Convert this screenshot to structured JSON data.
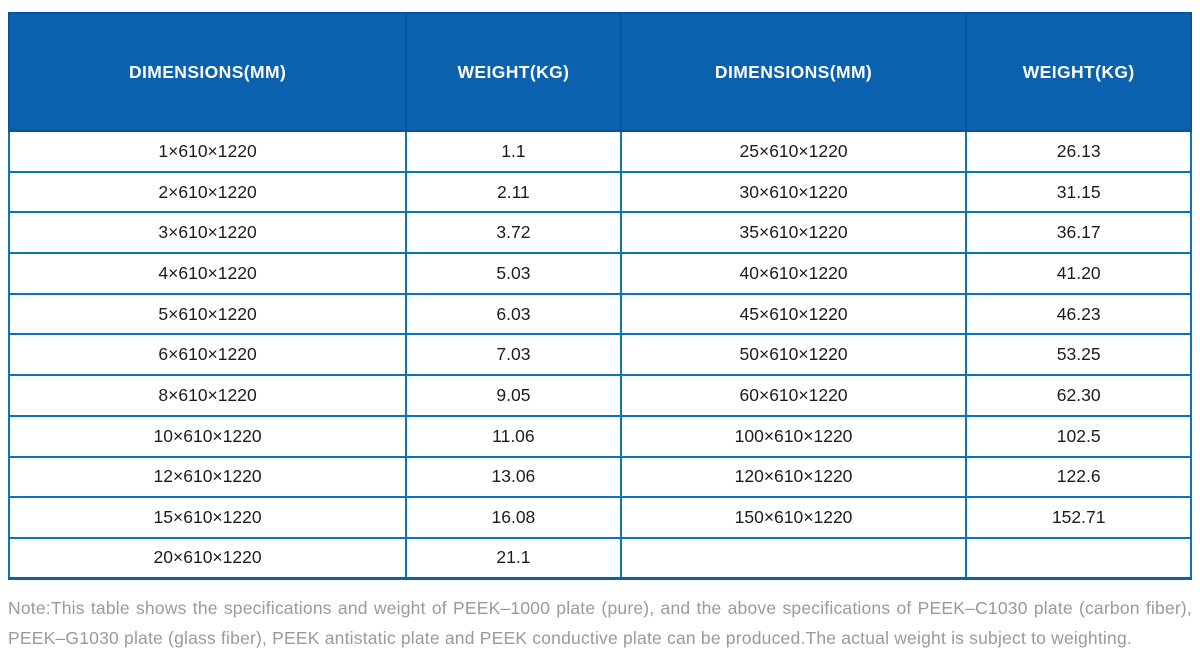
{
  "table": {
    "headers": [
      "DIMENSIONS(MM)",
      "WEIGHT(KG)",
      "DIMENSIONS(MM)",
      "WEIGHT(KG)"
    ],
    "rows": [
      [
        "1×610×1220",
        "1.1",
        "25×610×1220",
        "26.13"
      ],
      [
        "2×610×1220",
        "2.11",
        "30×610×1220",
        "31.15"
      ],
      [
        "3×610×1220",
        "3.72",
        "35×610×1220",
        "36.17"
      ],
      [
        "4×610×1220",
        "5.03",
        "40×610×1220",
        "41.20"
      ],
      [
        "5×610×1220",
        "6.03",
        "45×610×1220",
        "46.23"
      ],
      [
        "6×610×1220",
        "7.03",
        "50×610×1220",
        "53.25"
      ],
      [
        "8×610×1220",
        "9.05",
        "60×610×1220",
        "62.30"
      ],
      [
        "10×610×1220",
        "11.06",
        "100×610×1220",
        "102.5"
      ],
      [
        "12×610×1220",
        "13.06",
        "120×610×1220",
        "122.6"
      ],
      [
        "15×610×1220",
        "16.08",
        "150×610×1220",
        "152.71"
      ],
      [
        "20×610×1220",
        "21.1",
        "",
        ""
      ]
    ]
  },
  "note": {
    "text": "Note:This table shows the specifications and weight of PEEK–1000 plate (pure), and the above specifications of PEEK–C1030 plate (carbon fiber), PEEK–G1030 plate (glass fiber), PEEK antistatic plate and PEEK conductive plate can be produced.The actual weight is subject to weighting."
  },
  "colors": {
    "header_bg": "#0a62ae",
    "header_border": "#0852a0",
    "grid_border": "#0b74ba",
    "table_bottom_border": "#0a5fa8",
    "body_text": "#1c1c1c",
    "note_text": "#9a9a9a"
  }
}
